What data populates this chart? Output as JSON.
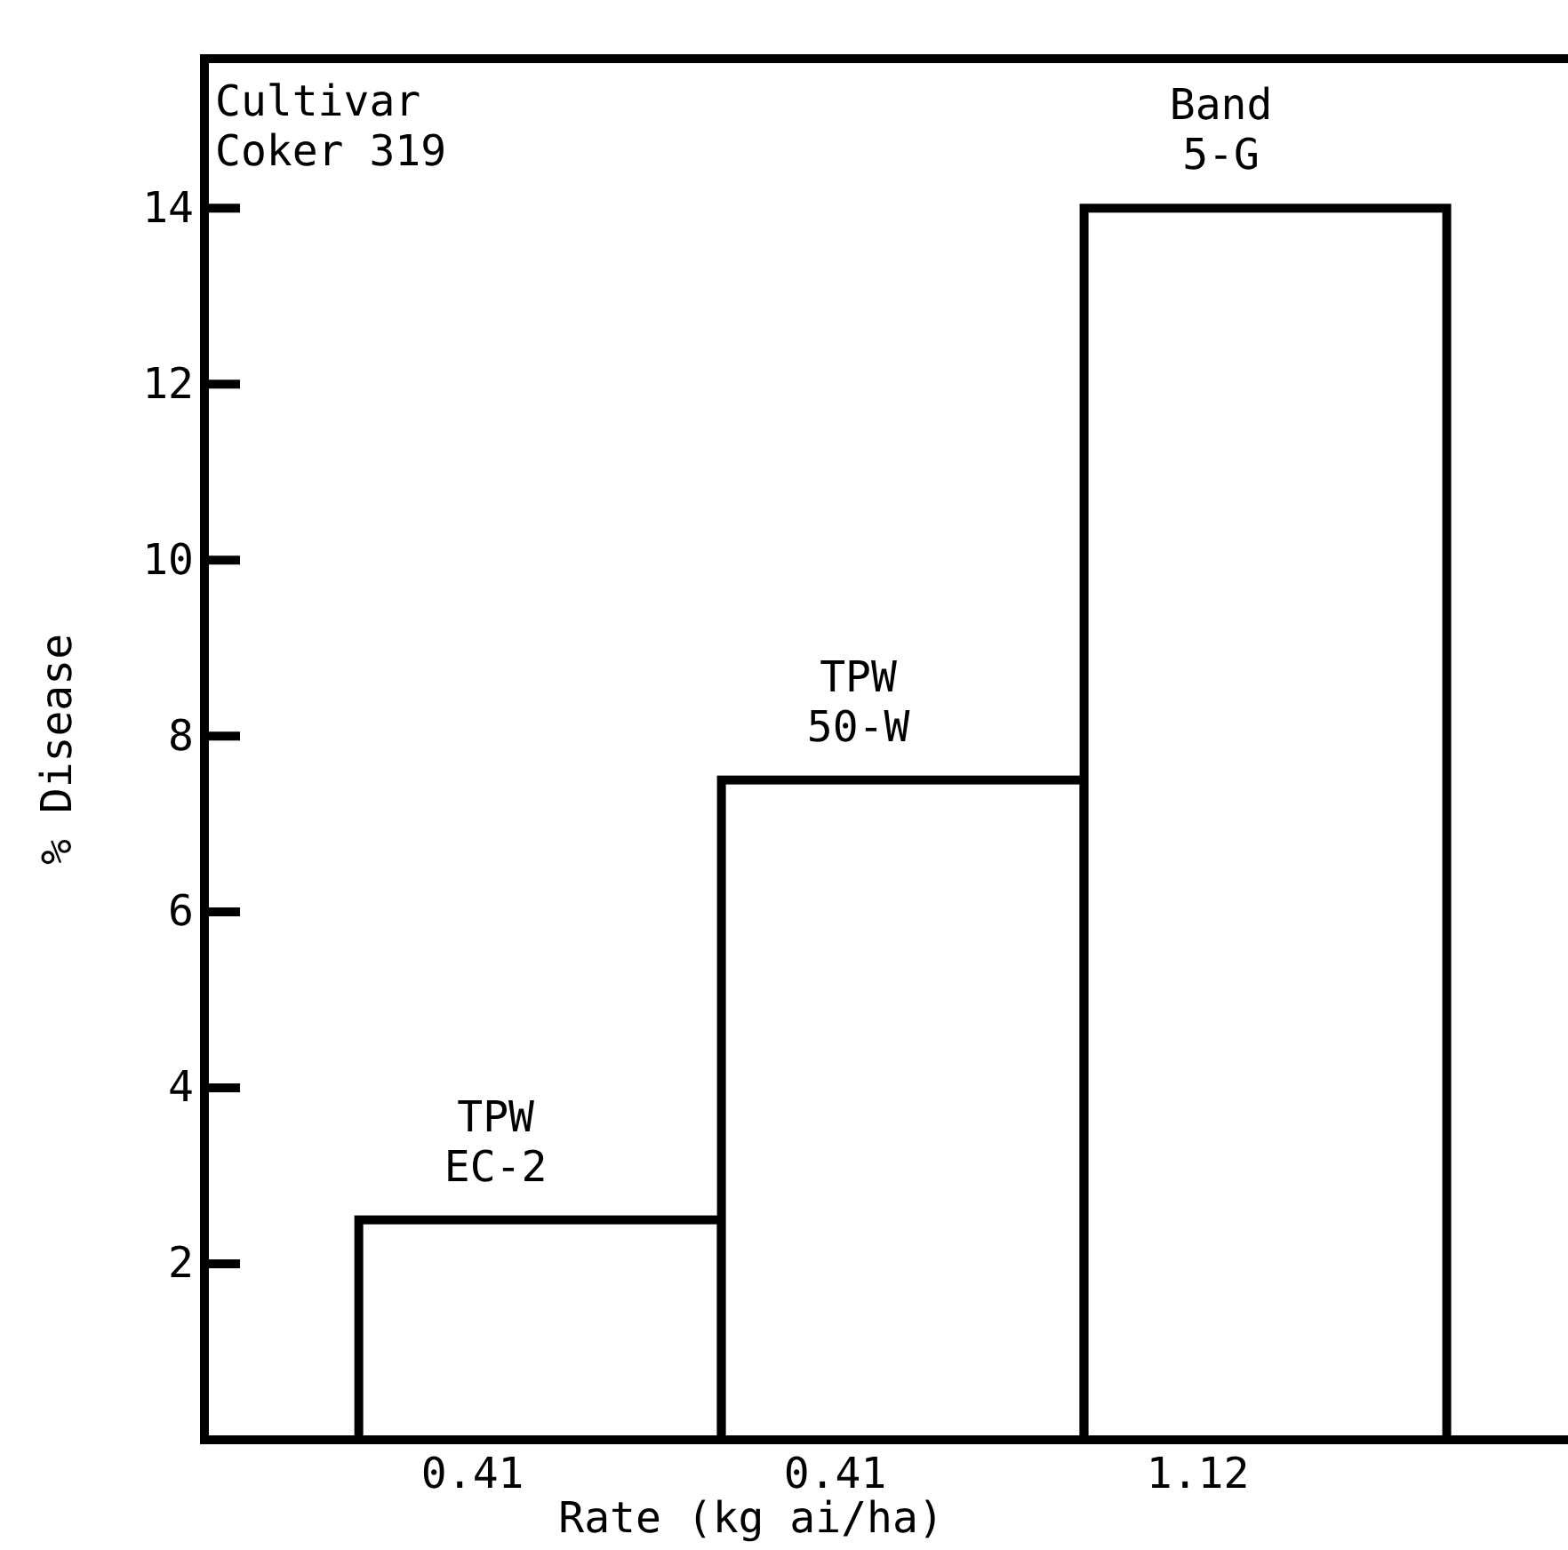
{
  "chart_data": {
    "type": "bar",
    "ylabel": "% Disease",
    "xlabel": "Rate (kg ai/ha)",
    "categories": [
      "0.41",
      "0.41",
      "1.12"
    ],
    "values": [
      2.5,
      7.5,
      14
    ],
    "color": "#ffffff",
    "ylim": [
      0,
      15.7
    ],
    "yticks": [
      2,
      4,
      6,
      8,
      10,
      12,
      14
    ],
    "annotations": [
      "Cultivar\nCoker 319",
      {
        "text": "TPW\nEC-2",
        "y": 2.5
      },
      {
        "text": "TPW\n50-W",
        "y": 7.5
      },
      {
        "text": "Band\n5-G",
        "y": 14
      }
    ]
  }
}
